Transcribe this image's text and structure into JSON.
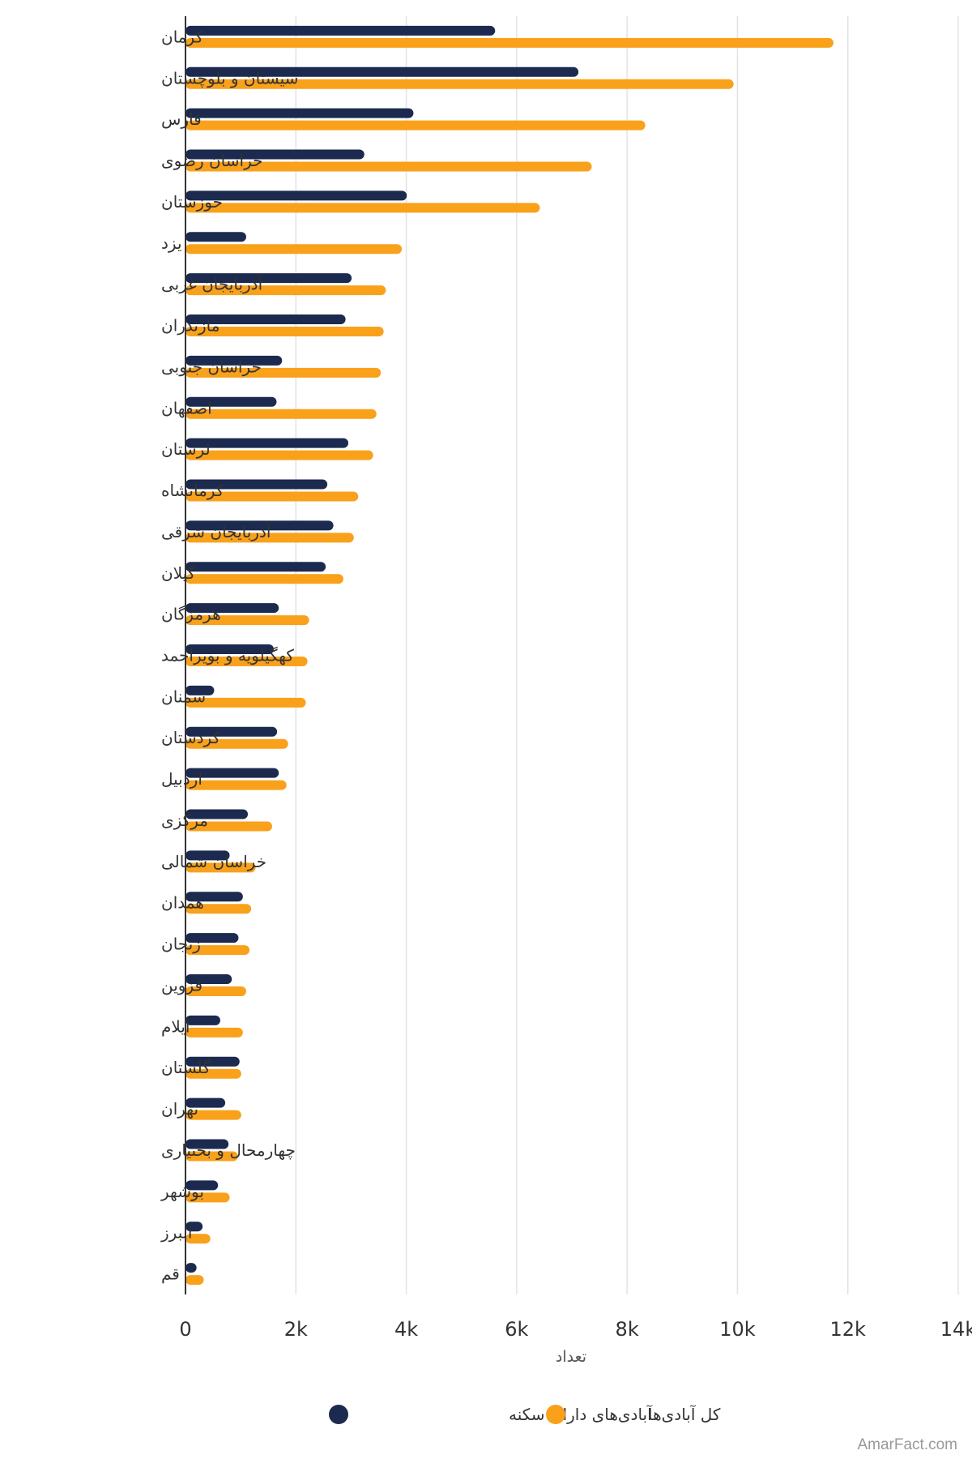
{
  "chart_data": {
    "type": "bar",
    "orientation": "horizontal",
    "categories": [
      "کرمان",
      "سیستان و بلوچستان",
      "فارس",
      "خراسان رضوی",
      "خوزستان",
      "یزد",
      "آذربایجان غربی",
      "مازندران",
      "خراسان جنوبی",
      "اصفهان",
      "لرستان",
      "کرمانشاه",
      "آذربایجان شرقی",
      "گیلان",
      "هرمزگان",
      "کهگیلویه و بویراحمد",
      "سمنان",
      "کردستان",
      "اردبیل",
      "مرکزی",
      "خراسان شمالی",
      "همدان",
      "زنجان",
      "قزوین",
      "ایلام",
      "گلستان",
      "تهران",
      "چهارمحال و بختیاری",
      "بوشهر",
      "البرز",
      "قم"
    ],
    "series": [
      {
        "name": "آبادی‌های دارای سکنه",
        "color": "#1b2a4e",
        "values": [
          5610,
          7120,
          4130,
          3240,
          4010,
          1100,
          3010,
          2900,
          1750,
          1650,
          2950,
          2570,
          2680,
          2540,
          1690,
          1600,
          520,
          1660,
          1690,
          1130,
          800,
          1040,
          960,
          840,
          630,
          980,
          720,
          780,
          590,
          310,
          200
        ]
      },
      {
        "name": "کل آبادی‌ها",
        "color": "#f9a11b",
        "values": [
          11740,
          9930,
          8330,
          7360,
          6420,
          3920,
          3630,
          3590,
          3540,
          3460,
          3400,
          3130,
          3050,
          2860,
          2240,
          2210,
          2180,
          1860,
          1830,
          1570,
          1270,
          1190,
          1160,
          1100,
          1040,
          1010,
          1010,
          950,
          800,
          450,
          330
        ]
      }
    ],
    "xlim": [
      0,
      14000
    ],
    "xticks": [
      0,
      2000,
      4000,
      6000,
      8000,
      10000,
      12000,
      14000
    ],
    "xtick_labels": [
      "0",
      "2k",
      "4k",
      "6k",
      "8k",
      "10k",
      "12k",
      "14k"
    ],
    "xlabel": "تعداد",
    "ylabel": "",
    "grid": true,
    "legend_position": "bottom-center"
  },
  "legend": {
    "items": [
      {
        "label": "آبادی‌های دارای سکنه",
        "color": "#1b2a4e"
      },
      {
        "label": "کل آبادی‌ها",
        "color": "#f9a11b"
      }
    ]
  },
  "footer": {
    "credit": "AmarFact.com"
  }
}
